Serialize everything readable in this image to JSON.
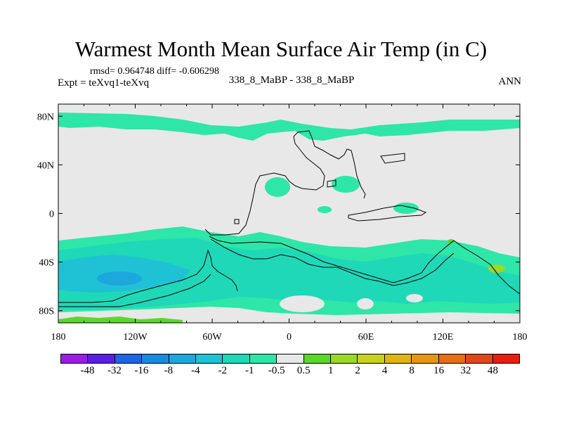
{
  "title": "Warmest Month Mean Surface Air Temp (in C)",
  "stats": "rmsd= 0.964748 diff= -0.606298",
  "expt": "Expt = teXvq1-teXvq",
  "center_subtitle": "338_8_MaBP - 338_8_MaBP",
  "season": "ANN",
  "chart_data": {
    "type": "heatmap",
    "x_tick_labels": [
      "180",
      "120W",
      "60W",
      "0",
      "60E",
      "120E",
      "180"
    ],
    "y_tick_labels": [
      "80N",
      "40N",
      "0",
      "40S",
      "80S"
    ],
    "x_range": [
      -180,
      180
    ],
    "y_range": [
      -90,
      90
    ],
    "colorbar": {
      "labels": [
        "-48",
        "-32",
        "-16",
        "-8",
        "-4",
        "-2",
        "-1",
        "-0.5",
        "0.5",
        "1",
        "2",
        "4",
        "8",
        "16",
        "32",
        "48"
      ],
      "colors": [
        "#9b1ce3",
        "#5a1ee0",
        "#1e64e6",
        "#1a8ae0",
        "#1ca8dc",
        "#1ec2d4",
        "#1ed8b8",
        "#2ee6a8",
        "#e8e8e8",
        "#5ad82a",
        "#9ad82a",
        "#c8d21e",
        "#e0b414",
        "#e69614",
        "#e66e14",
        "#e0461a",
        "#e61e14"
      ]
    },
    "regions": [
      {
        "label": "southern-ocean-band",
        "lon": [
          -180,
          180
        ],
        "lat": [
          -90,
          -25
        ],
        "value_class": "-1 to -0.5"
      },
      {
        "label": "south-pacific-cool-core",
        "lon": [
          -180,
          -60
        ],
        "lat": [
          -75,
          -35
        ],
        "value_class": "-2 to -1"
      },
      {
        "label": "northern-high-latitude-band",
        "lon": [
          -180,
          180
        ],
        "lat": [
          62,
          72
        ],
        "value_class": "-1 to -0.5"
      },
      {
        "label": "tasman-warm-patch",
        "lon": [
          155,
          170
        ],
        "lat": [
          -50,
          -42
        ],
        "value_class": "0.5 to 1"
      },
      {
        "label": "antarctic-warm-strip",
        "lon": [
          -175,
          -120
        ],
        "lat": [
          -90,
          -84
        ],
        "value_class": "0.5 to 1"
      }
    ]
  }
}
